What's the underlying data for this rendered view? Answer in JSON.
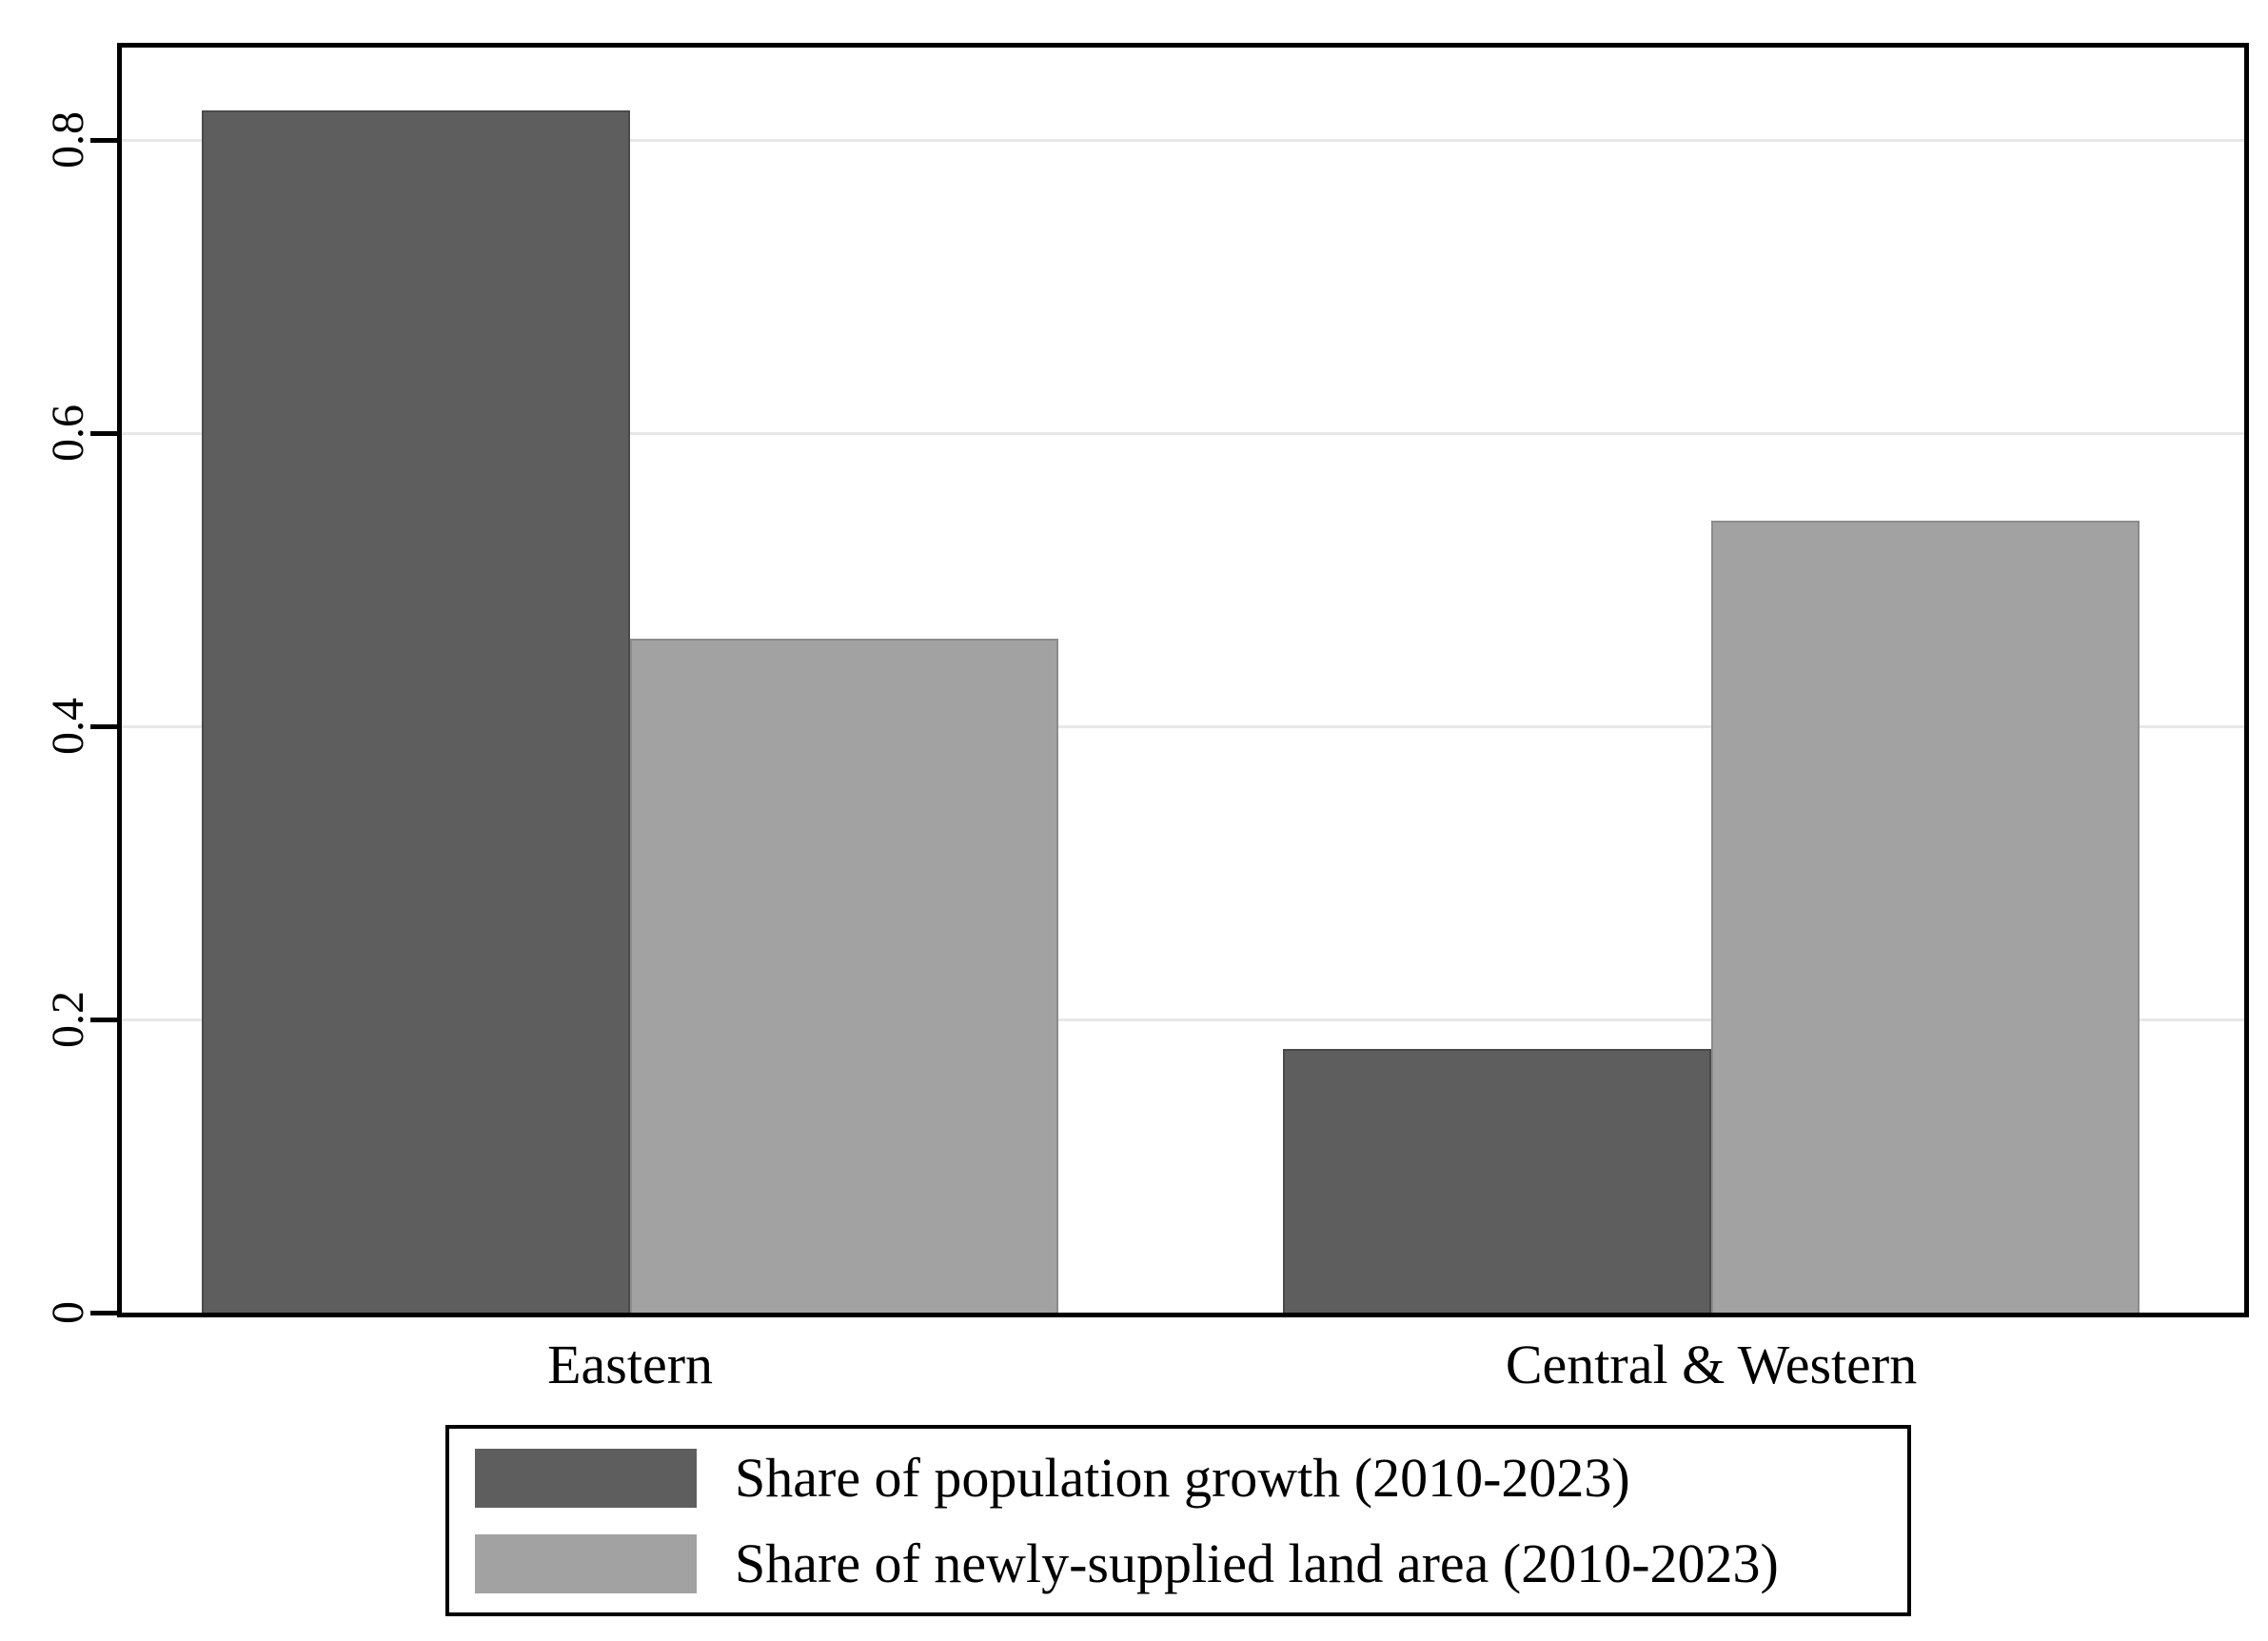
{
  "chart_data": {
    "type": "bar",
    "categories": [
      "Eastern",
      "Central & Western"
    ],
    "series": [
      {
        "name": "Share of population growth (2010-2023)",
        "values": [
          0.82,
          0.18
        ],
        "color": "#5e5e5e",
        "edge_color": "#4a4a4a"
      },
      {
        "name": "Share of newly-supplied land area (2010-2023)",
        "values": [
          0.46,
          0.54
        ],
        "color": "#a2a2a2",
        "edge_color": "#8c8c8c"
      }
    ],
    "title": "",
    "xlabel": "",
    "ylabel": "",
    "yticks": [
      0,
      0.2,
      0.4,
      0.6,
      0.8
    ],
    "ytick_labels": [
      "0",
      "0.2",
      "0.4",
      "0.6",
      "0.8"
    ],
    "ylim": [
      0,
      0.863
    ],
    "grid": true,
    "gridline_color": "#e7e7e7",
    "axis_color": "#000000",
    "background_color": "#ffffff",
    "legend_position": "bottom",
    "layout_hints": {
      "group_center_fractions": [
        0.2395,
        0.7489
      ],
      "bar_width_fraction": 0.2018
    }
  }
}
